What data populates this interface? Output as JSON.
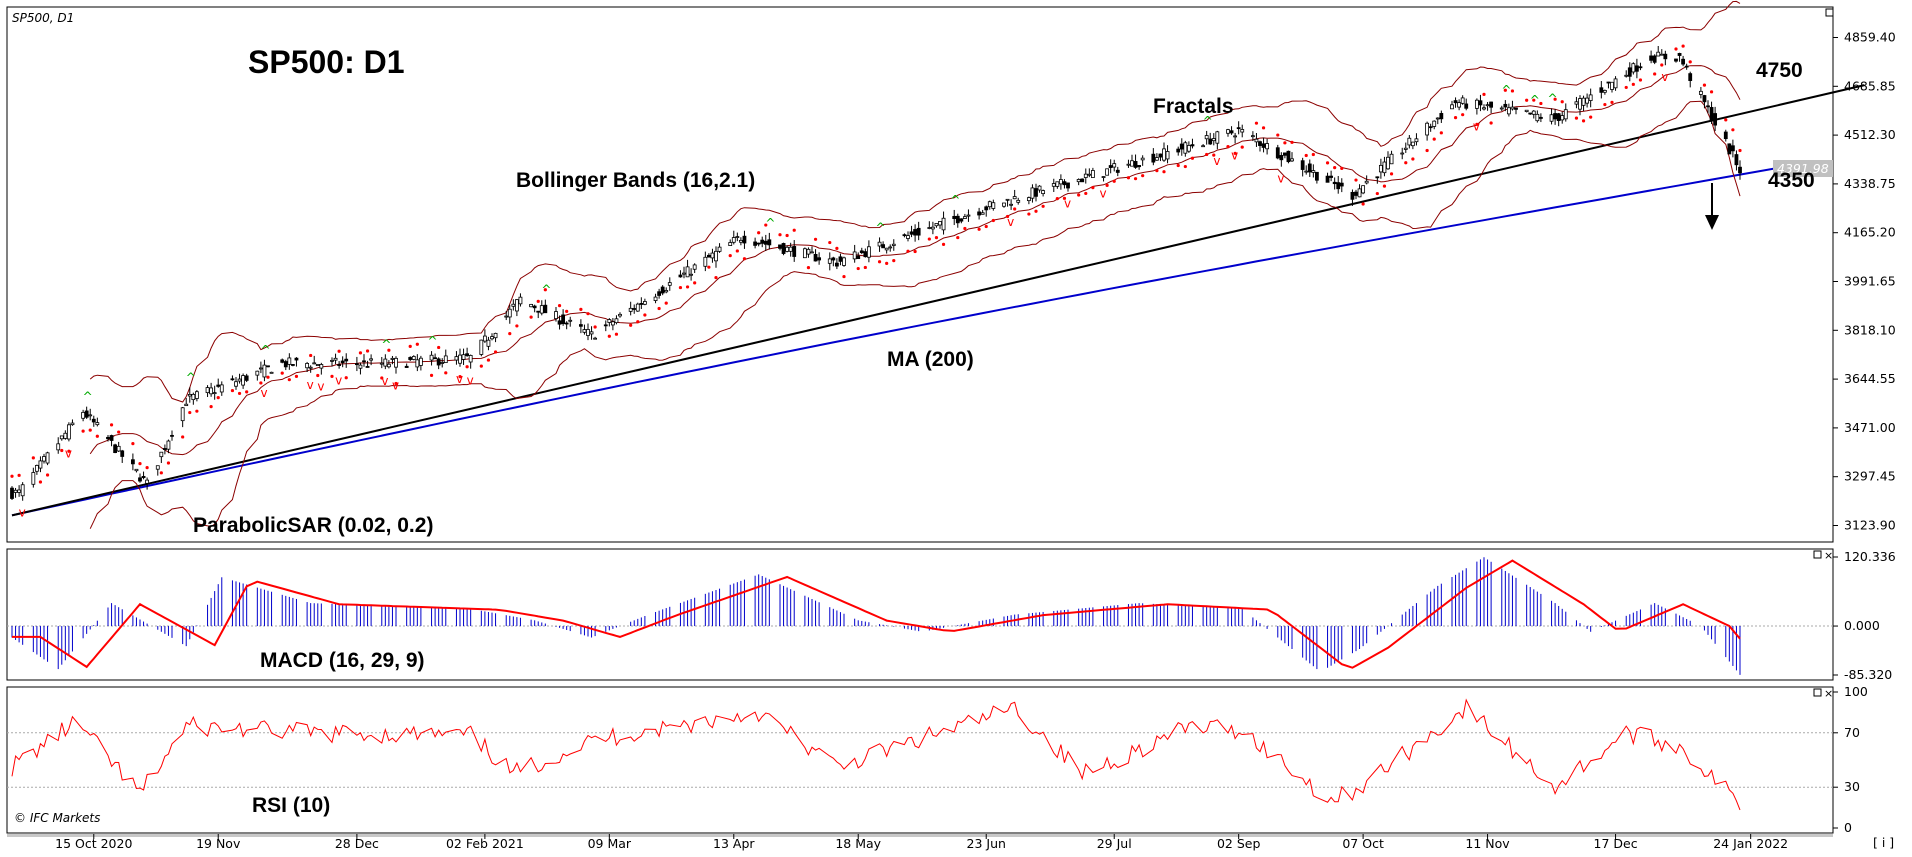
{
  "header": {
    "symbol_label": "SP500, D1",
    "title": "SP500: D1"
  },
  "annotations": {
    "bollinger": "Bollinger Bands (16,2.1)",
    "fractals": "Fractals",
    "ma": "MA (200)",
    "sar": "ParabolicSAR (0.02, 0.2)",
    "macd": "MACD (16, 29, 9)",
    "rsi": "RSI (10)",
    "target_high": "4750",
    "target_low": "4350",
    "copyright": "© IFC Markets",
    "corner": "[ i ]"
  },
  "colors": {
    "candle": "#000000",
    "bollinger": "#8b0000",
    "ma": "#0000cc",
    "sar": "#ff0000",
    "fractal_up": "#00aa00",
    "fractal_down": "#ff0000",
    "macd_hist": "#0000cc",
    "macd_signal": "#ff0000",
    "rsi": "#ff0000",
    "current_price_bg": "#c0c0c0"
  },
  "chart_data": [
    {
      "type": "candlestick",
      "name": "SP500, D1",
      "y_ticks": [
        "4859.40",
        "4685.85",
        "4512.30",
        "4338.75",
        "4165.20",
        "3991.65",
        "3818.10",
        "3644.55",
        "3471.00",
        "3297.45",
        "3123.90"
      ],
      "current_price": "4391.98",
      "x_ticks": [
        "15 Oct 2020",
        "19 Nov",
        "28 Dec",
        "02 Feb 2021",
        "09 Mar",
        "13 Apr",
        "18 May",
        "23 Jun",
        "29 Jul",
        "02 Sep",
        "07 Oct",
        "11 Nov",
        "17 Dec",
        "24 Jan 2022"
      ],
      "price_path": {
        "dates": [
          "2020-09-24",
          "2020-10-12",
          "2020-10-30",
          "2020-11-10",
          "2020-12-07",
          "2021-01-04",
          "2021-01-29",
          "2021-02-12",
          "2021-03-04",
          "2021-04-15",
          "2021-05-12",
          "2021-06-24",
          "2021-08-13",
          "2021-09-02",
          "2021-10-04",
          "2021-11-02",
          "2021-11-30",
          "2021-12-27",
          "2022-01-04",
          "2022-01-21"
        ],
        "close": [
          3240,
          3530,
          3270,
          3570,
          3700,
          3700,
          3720,
          3930,
          3800,
          4150,
          4060,
          4260,
          4450,
          4530,
          4300,
          4630,
          4570,
          4790,
          4790,
          4390
        ]
      },
      "trend_lines": [
        {
          "name": "support",
          "from": [
            "2020-09-22",
            3160
          ],
          "to": [
            "2022-02-25",
            4690
          ]
        }
      ],
      "levels": [
        4750,
        4350
      ],
      "indicators": [
        "Bollinger Bands (16,2.1)",
        "Fractals",
        "MA (200)",
        "ParabolicSAR (0.02, 0.2)"
      ]
    },
    {
      "type": "bar",
      "name": "MACD (16, 29, 9)",
      "y_ticks": [
        "120.336",
        "0.000",
        "-85.320"
      ],
      "histogram_path": {
        "dates": [
          "2020-09-22",
          "2020-10-05",
          "2020-10-20",
          "2020-11-10",
          "2020-11-20",
          "2020-12-15",
          "2021-01-29",
          "2021-02-16",
          "2021-03-04",
          "2021-03-20",
          "2021-04-20",
          "2021-05-18",
          "2021-06-05",
          "2021-07-01",
          "2021-08-05",
          "2021-09-03",
          "2021-09-25",
          "2021-10-06",
          "2021-10-28",
          "2021-11-10",
          "2021-11-30",
          "2021-12-10",
          "2021-12-28",
          "2022-01-10",
          "2022-01-21"
        ],
        "values": [
          -20,
          -75,
          40,
          -35,
          85,
          40,
          30,
          10,
          -20,
          20,
          90,
          10,
          -10,
          20,
          40,
          30,
          -80,
          -40,
          70,
          120,
          40,
          -10,
          40,
          0,
          -85
        ]
      }
    },
    {
      "type": "line",
      "name": "RSI (10)",
      "y_ticks": [
        "100",
        "70",
        "30",
        "0"
      ],
      "x": [
        "2020-09-22",
        "2020-10-10",
        "2020-10-28",
        "2020-11-10",
        "2020-12-15",
        "2021-01-29",
        "2021-02-10",
        "2021-03-05",
        "2021-04-20",
        "2021-05-12",
        "2021-06-10",
        "2021-07-01",
        "2021-07-20",
        "2021-08-20",
        "2021-09-03",
        "2021-09-28",
        "2021-10-06",
        "2021-11-05",
        "2021-11-30",
        "2021-12-20",
        "2022-01-04",
        "2022-01-21"
      ],
      "y": [
        45,
        78,
        25,
        75,
        70,
        68,
        40,
        65,
        85,
        45,
        70,
        88,
        40,
        75,
        72,
        20,
        30,
        88,
        30,
        70,
        60,
        18
      ]
    }
  ]
}
